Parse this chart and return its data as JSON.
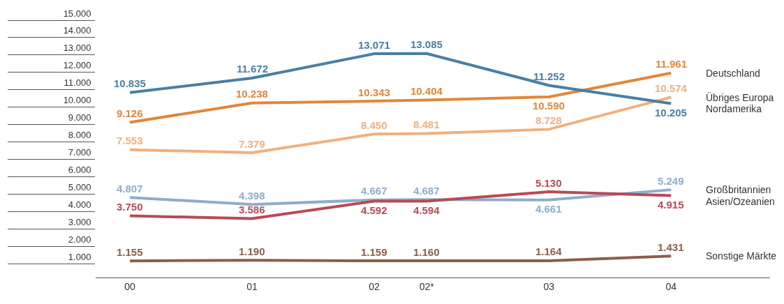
{
  "chart_data": {
    "type": "line",
    "x": [
      0,
      1,
      2,
      2.43,
      3.43,
      4.43
    ],
    "xlim": [
      -0.28,
      5.24
    ],
    "xticks": [
      {
        "value": 0,
        "label": "00"
      },
      {
        "value": 1,
        "label": "01"
      },
      {
        "value": 2,
        "label": "02"
      },
      {
        "value": 2.43,
        "label": "02*"
      },
      {
        "value": 3.43,
        "label": "03"
      },
      {
        "value": 4.43,
        "label": "04"
      }
    ],
    "ylim": [
      200,
      15000
    ],
    "yticks": [
      {
        "value": 1000,
        "label": "1.000"
      },
      {
        "value": 2000,
        "label": "2.000"
      },
      {
        "value": 3000,
        "label": "3.000"
      },
      {
        "value": 4000,
        "label": "4.000"
      },
      {
        "value": 5000,
        "label": "5.000"
      },
      {
        "value": 6000,
        "label": "6.000"
      },
      {
        "value": 7000,
        "label": "7.000"
      },
      {
        "value": 8000,
        "label": "8.000"
      },
      {
        "value": 9000,
        "label": "9.000"
      },
      {
        "value": 10000,
        "label": "10.000"
      },
      {
        "value": 11000,
        "label": "11.000"
      },
      {
        "value": 12000,
        "label": "12.000"
      },
      {
        "value": 13000,
        "label": "13.000"
      },
      {
        "value": 14000,
        "label": "14.000"
      },
      {
        "value": 15000,
        "label": "15.000"
      }
    ],
    "legend": "right",
    "line_style": "solid",
    "series": [
      {
        "name": "Deutschland",
        "color": "#e0873a",
        "values": [
          9126,
          10238,
          10343,
          10404,
          10590,
          11961
        ],
        "value_labels": [
          "9.126",
          "10.238",
          "10.343",
          "10.404",
          "10.590",
          "11.961"
        ]
      },
      {
        "name": "Übriges Europa",
        "color": "#f0b07f",
        "values": [
          7553,
          7379,
          8450,
          8481,
          8728,
          10574
        ],
        "value_labels": [
          "7.553",
          "7.379",
          "8.450",
          "8.481",
          "8.728",
          "10.574"
        ]
      },
      {
        "name": "Nordamerika",
        "color": "#4a7fa5",
        "values": [
          10835,
          11672,
          13071,
          13085,
          11252,
          10205
        ],
        "value_labels": [
          "10.835",
          "11.672",
          "13.071",
          "13.085",
          "11.252",
          "10.205"
        ]
      },
      {
        "name": "Großbritannien",
        "color": "#8eaccc",
        "values": [
          4807,
          4398,
          4667,
          4687,
          4661,
          5249
        ],
        "value_labels": [
          "4.807",
          "4.398",
          "4.667",
          "4.687",
          "4.661",
          "5.249"
        ]
      },
      {
        "name": "Asien/Ozeanien",
        "color": "#b84a55",
        "values": [
          3750,
          3586,
          4592,
          4594,
          5130,
          4915
        ],
        "value_labels": [
          "3.750",
          "3.586",
          "4.592",
          "4.594",
          "5.130",
          "4.915"
        ]
      },
      {
        "name": "Sonstige Märkte",
        "color": "#8c5e4a",
        "values": [
          1155,
          1190,
          1159,
          1160,
          1164,
          1431
        ],
        "value_labels": [
          "1.155",
          "1.190",
          "1.159",
          "1.160",
          "1.164",
          "1.431"
        ]
      }
    ]
  }
}
